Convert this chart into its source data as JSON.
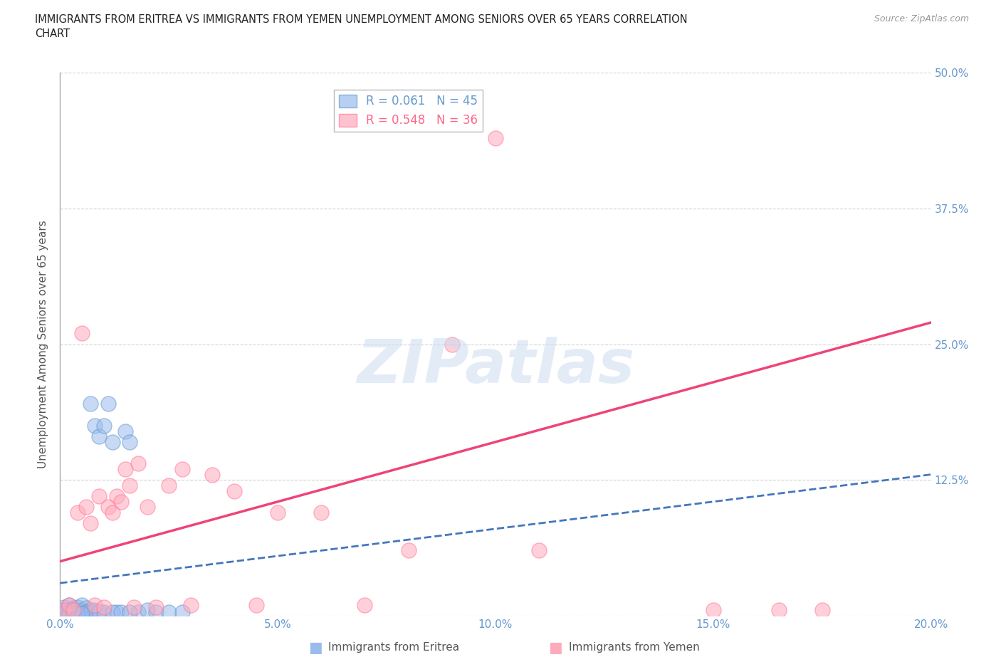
{
  "title_line1": "IMMIGRANTS FROM ERITREA VS IMMIGRANTS FROM YEMEN UNEMPLOYMENT AMONG SENIORS OVER 65 YEARS CORRELATION",
  "title_line2": "CHART",
  "source": "Source: ZipAtlas.com",
  "ylabel": "Unemployment Among Seniors over 65 years",
  "xlim": [
    0.0,
    0.2
  ],
  "ylim": [
    0.0,
    0.5
  ],
  "xticks": [
    0.0,
    0.05,
    0.1,
    0.15,
    0.2
  ],
  "xticklabels": [
    "0.0%",
    "5.0%",
    "10.0%",
    "15.0%",
    "20.0%"
  ],
  "yticks": [
    0.0,
    0.125,
    0.25,
    0.375,
    0.5
  ],
  "yticklabels_right": [
    "",
    "12.5%",
    "25.0%",
    "37.5%",
    "50.0%"
  ],
  "eritrea_color": "#99BBEE",
  "eritrea_edge": "#6699CC",
  "yemen_color": "#FFAABB",
  "yemen_edge": "#FF7799",
  "eritrea_trend_color": "#4477BB",
  "yemen_trend_color": "#EE4477",
  "eritrea_R": 0.061,
  "eritrea_N": 45,
  "yemen_R": 0.548,
  "yemen_N": 36,
  "watermark": "ZIPatlas",
  "background_color": "#FFFFFF",
  "grid_color": "#CCCCCC",
  "title_color": "#222222",
  "axis_label_color": "#555555",
  "tick_color": "#6699CC",
  "source_color": "#999999",
  "eritrea_label": "Immigrants from Eritrea",
  "yemen_label": "Immigrants from Yemen",
  "eritrea_x": [
    0.001,
    0.001,
    0.001,
    0.002,
    0.002,
    0.002,
    0.003,
    0.003,
    0.003,
    0.004,
    0.004,
    0.004,
    0.005,
    0.005,
    0.005,
    0.006,
    0.006,
    0.006,
    0.007,
    0.007,
    0.007,
    0.008,
    0.008,
    0.009,
    0.009,
    0.01,
    0.01,
    0.011,
    0.012,
    0.013,
    0.015,
    0.016,
    0.018,
    0.02,
    0.022,
    0.025,
    0.028,
    0.012,
    0.014,
    0.016,
    0.001,
    0.002,
    0.003,
    0.004,
    0.005
  ],
  "eritrea_y": [
    0.005,
    0.003,
    0.008,
    0.004,
    0.006,
    0.01,
    0.003,
    0.007,
    0.005,
    0.004,
    0.003,
    0.008,
    0.005,
    0.003,
    0.01,
    0.004,
    0.007,
    0.003,
    0.005,
    0.195,
    0.003,
    0.175,
    0.005,
    0.165,
    0.004,
    0.175,
    0.003,
    0.195,
    0.16,
    0.003,
    0.17,
    0.16,
    0.003,
    0.005,
    0.003,
    0.003,
    0.003,
    0.003,
    0.003,
    0.003,
    0.002,
    0.002,
    0.002,
    0.002,
    0.002
  ],
  "yemen_x": [
    0.001,
    0.002,
    0.003,
    0.004,
    0.005,
    0.006,
    0.007,
    0.008,
    0.009,
    0.01,
    0.011,
    0.012,
    0.013,
    0.014,
    0.015,
    0.016,
    0.017,
    0.018,
    0.02,
    0.022,
    0.025,
    0.028,
    0.03,
    0.035,
    0.04,
    0.045,
    0.05,
    0.06,
    0.07,
    0.08,
    0.09,
    0.1,
    0.11,
    0.15,
    0.165,
    0.175
  ],
  "yemen_y": [
    0.005,
    0.01,
    0.005,
    0.095,
    0.26,
    0.1,
    0.085,
    0.01,
    0.11,
    0.008,
    0.1,
    0.095,
    0.11,
    0.105,
    0.135,
    0.12,
    0.008,
    0.14,
    0.1,
    0.008,
    0.12,
    0.135,
    0.01,
    0.13,
    0.115,
    0.01,
    0.095,
    0.095,
    0.01,
    0.06,
    0.25,
    0.44,
    0.06,
    0.005,
    0.005,
    0.005
  ],
  "eritrea_trend_intercept": 0.03,
  "eritrea_trend_slope": 0.5,
  "yemen_trend_intercept": 0.05,
  "yemen_trend_slope": 1.1
}
